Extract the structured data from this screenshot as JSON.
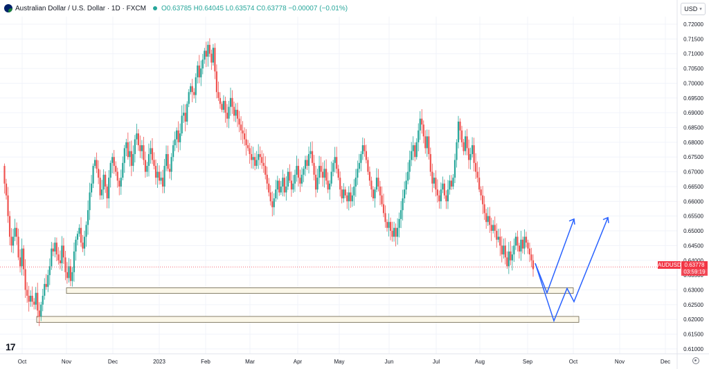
{
  "legend": {
    "symbol_title": "Australian Dollar / U.S. Dollar · 1D · FXCM",
    "ohlc": "O0.63785 H0.64045 L0.63574 C0.63778 −0.00007 (−0.01%)"
  },
  "currency_button": {
    "label": "USD"
  },
  "price_tag": {
    "symbol": "AUDUSD",
    "value": "0.63778",
    "countdown": "03:59:19"
  },
  "colors": {
    "up": "#26a69a",
    "down": "#ef5350",
    "projection": "#2962ff",
    "price_line": "#f23645"
  },
  "icons": {
    "logo": "tradingview-logo-icon",
    "settings": "gear-icon",
    "flag": "au-flag-icon"
  },
  "chart_data": {
    "type": "candlestick",
    "title": "Australian Dollar / U.S. Dollar · 1D · FXCM",
    "symbol": "AUDUSD",
    "last_price": 0.63778,
    "y_ticks": [
      "0.72000",
      "0.71500",
      "0.71000",
      "0.70500",
      "0.70000",
      "0.69500",
      "0.69000",
      "0.68500",
      "0.68000",
      "0.67500",
      "0.67000",
      "0.66500",
      "0.66000",
      "0.65500",
      "0.65000",
      "0.64500",
      "0.64000",
      "0.63500",
      "0.63000",
      "0.62500",
      "0.62000",
      "0.61500",
      "0.61000"
    ],
    "ylim": [
      0.609,
      0.7225
    ],
    "x_ticks": [
      "Oct",
      "Nov",
      "Dec",
      "2023",
      "Feb",
      "Mar",
      "Apr",
      "May",
      "Jun",
      "Jul",
      "Aug",
      "Sep",
      "Oct",
      "Nov",
      "Dec"
    ],
    "close_path": [
      0.672,
      0.666,
      0.662,
      0.655,
      0.648,
      0.645,
      0.648,
      0.651,
      0.648,
      0.641,
      0.638,
      0.644,
      0.637,
      0.63,
      0.628,
      0.626,
      0.628,
      0.626,
      0.625,
      0.629,
      0.623,
      0.621,
      0.625,
      0.628,
      0.632,
      0.631,
      0.635,
      0.638,
      0.644,
      0.643,
      0.646,
      0.642,
      0.64,
      0.639,
      0.645,
      0.641,
      0.636,
      0.634,
      0.638,
      0.633,
      0.636,
      0.643,
      0.647,
      0.649,
      0.651,
      0.646,
      0.644,
      0.648,
      0.652,
      0.657,
      0.663,
      0.666,
      0.672,
      0.674,
      0.671,
      0.668,
      0.662,
      0.664,
      0.669,
      0.665,
      0.661,
      0.668,
      0.673,
      0.675,
      0.672,
      0.67,
      0.667,
      0.665,
      0.668,
      0.673,
      0.678,
      0.68,
      0.675,
      0.677,
      0.672,
      0.676,
      0.681,
      0.683,
      0.679,
      0.677,
      0.679,
      0.674,
      0.67,
      0.672,
      0.676,
      0.678,
      0.674,
      0.672,
      0.668,
      0.67,
      0.667,
      0.668,
      0.665,
      0.672,
      0.676,
      0.671,
      0.67,
      0.675,
      0.679,
      0.681,
      0.684,
      0.68,
      0.683,
      0.689,
      0.69,
      0.687,
      0.693,
      0.697,
      0.699,
      0.697,
      0.696,
      0.702,
      0.706,
      0.702,
      0.705,
      0.708,
      0.711,
      0.709,
      0.713,
      0.71,
      0.707,
      0.712,
      0.704,
      0.697,
      0.695,
      0.693,
      0.691,
      0.694,
      0.69,
      0.688,
      0.692,
      0.695,
      0.692,
      0.689,
      0.691,
      0.688,
      0.686,
      0.684,
      0.683,
      0.681,
      0.679,
      0.678,
      0.676,
      0.674,
      0.675,
      0.672,
      0.674,
      0.676,
      0.675,
      0.673,
      0.672,
      0.669,
      0.666,
      0.663,
      0.66,
      0.658,
      0.661,
      0.664,
      0.667,
      0.663,
      0.665,
      0.668,
      0.663,
      0.665,
      0.67,
      0.667,
      0.664,
      0.666,
      0.669,
      0.672,
      0.668,
      0.666,
      0.669,
      0.671,
      0.674,
      0.672,
      0.676,
      0.677,
      0.673,
      0.669,
      0.664,
      0.668,
      0.672,
      0.67,
      0.668,
      0.671,
      0.667,
      0.664,
      0.666,
      0.67,
      0.673,
      0.675,
      0.671,
      0.668,
      0.664,
      0.661,
      0.664,
      0.662,
      0.66,
      0.663,
      0.66,
      0.662,
      0.665,
      0.668,
      0.671,
      0.673,
      0.676,
      0.679,
      0.677,
      0.674,
      0.67,
      0.667,
      0.664,
      0.661,
      0.664,
      0.668,
      0.665,
      0.662,
      0.659,
      0.656,
      0.653,
      0.651,
      0.653,
      0.65,
      0.648,
      0.651,
      0.648,
      0.651,
      0.654,
      0.657,
      0.661,
      0.664,
      0.667,
      0.67,
      0.674,
      0.677,
      0.679,
      0.675,
      0.68,
      0.684,
      0.688,
      0.686,
      0.682,
      0.678,
      0.682,
      0.676,
      0.67,
      0.666,
      0.668,
      0.664,
      0.662,
      0.66,
      0.664,
      0.666,
      0.662,
      0.66,
      0.664,
      0.667,
      0.665,
      0.668,
      0.674,
      0.68,
      0.687,
      0.684,
      0.68,
      0.677,
      0.682,
      0.678,
      0.674,
      0.676,
      0.679,
      0.673,
      0.67,
      0.668,
      0.664,
      0.662,
      0.659,
      0.656,
      0.653,
      0.655,
      0.652,
      0.65,
      0.652,
      0.65,
      0.647,
      0.648,
      0.645,
      0.642,
      0.645,
      0.641,
      0.638,
      0.643,
      0.64,
      0.642,
      0.645,
      0.648,
      0.645,
      0.643,
      0.647,
      0.644,
      0.648,
      0.646,
      0.644,
      0.642,
      0.64,
      0.637
    ],
    "highs_lows": [
      {
        "date": "Oct 2022",
        "low": 0.617
      },
      {
        "date": "Jan/Feb 2023",
        "high": 0.7157
      },
      {
        "date": "Jun 2023",
        "high": 0.69
      },
      {
        "date": "Jul 2023",
        "high": 0.6895
      },
      {
        "date": "Aug 2023",
        "low": 0.6365
      }
    ],
    "zones": [
      {
        "name": "support-zone-upper",
        "from": 0.6288,
        "to": 0.6307
      },
      {
        "name": "support-zone-lower",
        "from": 0.619,
        "to": 0.621
      }
    ],
    "projection": [
      {
        "name": "projection-path-1",
        "points": [
          [
            0,
            0.639
          ],
          [
            1,
            0.629
          ],
          [
            2,
            0.654
          ]
        ]
      },
      {
        "name": "projection-path-2",
        "points": [
          [
            0,
            0.639
          ],
          [
            1,
            0.6195
          ],
          [
            2,
            0.6305
          ],
          [
            3,
            0.626
          ],
          [
            4,
            0.6545
          ]
        ]
      }
    ]
  }
}
